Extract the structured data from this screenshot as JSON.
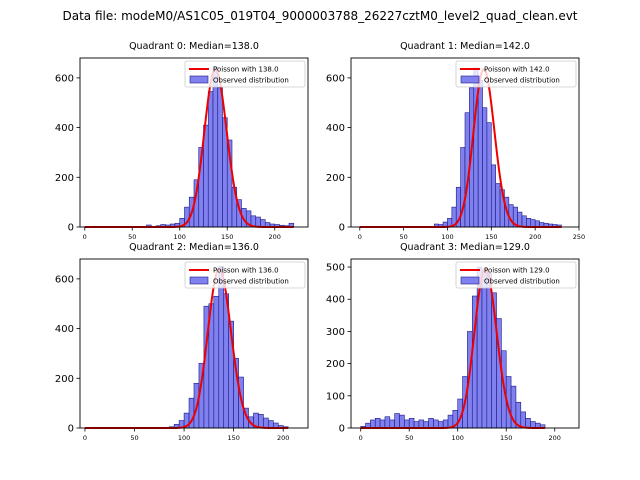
{
  "figure_title": "Data file: modeM0/AS1C05_019T04_9000003788_26227cztM0_level2_quad_clean.evt",
  "colors": {
    "hist_fill": "#8080ee",
    "hist_edge": "#1a1a8a",
    "poisson": "#ee0000",
    "axis": "#000000"
  },
  "chart_data": [
    {
      "type": "bar",
      "title": "Quadrant 0: Median=138.0",
      "median": 138.0,
      "xlim": [
        -5,
        235
      ],
      "ylim": [
        0,
        680
      ],
      "xticks": [
        0,
        50,
        100,
        150,
        200
      ],
      "yticks": [
        0,
        200,
        400,
        600
      ],
      "legend": {
        "line_label": "Poisson with 138.0",
        "bar_label": "Observed distribution",
        "loc": "upper right"
      },
      "bin_width": 5,
      "bin_starts": [
        65,
        75,
        80,
        85,
        90,
        95,
        100,
        105,
        110,
        115,
        120,
        125,
        130,
        135,
        140,
        145,
        150,
        155,
        160,
        165,
        170,
        175,
        180,
        185,
        190,
        195,
        200,
        205,
        210,
        215
      ],
      "counts": [
        8,
        5,
        10,
        8,
        12,
        15,
        35,
        80,
        120,
        190,
        320,
        410,
        545,
        645,
        560,
        440,
        350,
        160,
        110,
        75,
        65,
        45,
        40,
        30,
        18,
        12,
        10,
        7,
        5,
        15
      ],
      "poisson_peak": 635
    },
    {
      "type": "bar",
      "title": "Quadrant 1: Median=142.0",
      "median": 142.0,
      "xlim": [
        -10,
        250
      ],
      "ylim": [
        0,
        680
      ],
      "xticks": [
        0,
        50,
        100,
        150,
        200,
        250
      ],
      "yticks": [
        0,
        200,
        400,
        600
      ],
      "legend": {
        "line_label": "Poisson with 142.0",
        "bar_label": "Observed distribution",
        "loc": "upper right"
      },
      "bin_width": 5,
      "bin_starts": [
        85,
        90,
        95,
        100,
        105,
        110,
        115,
        120,
        125,
        130,
        135,
        140,
        145,
        150,
        155,
        160,
        165,
        170,
        175,
        180,
        185,
        190,
        195,
        200,
        205,
        210,
        215,
        220,
        225
      ],
      "counts": [
        12,
        10,
        20,
        35,
        80,
        160,
        320,
        460,
        560,
        640,
        590,
        480,
        420,
        250,
        175,
        150,
        120,
        90,
        80,
        60,
        45,
        35,
        30,
        25,
        18,
        15,
        12,
        10,
        8
      ],
      "poisson_peak": 635
    },
    {
      "type": "bar",
      "title": "Quadrant 2: Median=136.0",
      "median": 136.0,
      "xlim": [
        -5,
        225
      ],
      "ylim": [
        0,
        680
      ],
      "xticks": [
        0,
        50,
        100,
        150,
        200
      ],
      "yticks": [
        0,
        200,
        400,
        600
      ],
      "legend": {
        "line_label": "Poisson with 136.0",
        "bar_label": "Observed distribution",
        "loc": "upper right"
      },
      "bin_width": 5,
      "bin_starts": [
        85,
        90,
        95,
        100,
        105,
        110,
        115,
        120,
        125,
        130,
        135,
        140,
        145,
        150,
        155,
        160,
        165,
        170,
        175,
        180,
        185,
        190,
        195,
        200
      ],
      "counts": [
        5,
        15,
        30,
        60,
        120,
        180,
        260,
        490,
        500,
        530,
        650,
        540,
        430,
        280,
        205,
        80,
        45,
        60,
        55,
        40,
        30,
        20,
        10,
        5
      ],
      "poisson_peak": 640
    },
    {
      "type": "bar",
      "title": "Quadrant 3: Median=129.0",
      "median": 129.0,
      "xlim": [
        -10,
        225
      ],
      "ylim": [
        0,
        525
      ],
      "xticks": [
        0,
        50,
        100,
        150,
        200
      ],
      "yticks": [
        0,
        100,
        200,
        300,
        400,
        500
      ],
      "legend": {
        "line_label": "Poisson with 129.0",
        "bar_label": "Observed distribution",
        "loc": "upper right"
      },
      "bin_width": 5,
      "bin_starts": [
        0,
        5,
        10,
        15,
        20,
        25,
        30,
        35,
        40,
        45,
        50,
        55,
        60,
        65,
        70,
        75,
        80,
        85,
        90,
        95,
        100,
        105,
        110,
        115,
        120,
        125,
        130,
        135,
        140,
        145,
        150,
        155,
        160,
        165,
        170,
        175,
        180,
        185
      ],
      "counts": [
        5,
        15,
        25,
        30,
        25,
        35,
        25,
        45,
        40,
        25,
        30,
        20,
        25,
        20,
        30,
        25,
        20,
        25,
        40,
        55,
        90,
        160,
        300,
        410,
        500,
        485,
        480,
        420,
        340,
        240,
        160,
        130,
        80,
        50,
        30,
        20,
        15,
        10
      ],
      "poisson_peak": 495
    }
  ]
}
